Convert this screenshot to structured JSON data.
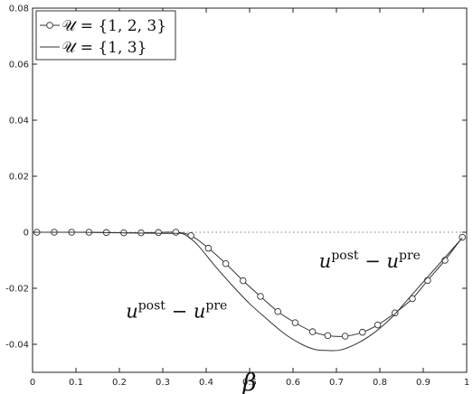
{
  "chart_data": {
    "type": "line",
    "xlabel": "β",
    "ylabel": "",
    "xlim": [
      0,
      1
    ],
    "ylim": [
      -0.05,
      0.08
    ],
    "xticks": [
      0,
      0.1,
      0.2,
      0.3,
      0.4,
      0.5,
      0.6,
      0.7,
      0.8,
      0.9,
      1
    ],
    "xtick_labels": [
      "0",
      "0.1",
      "0.2",
      "0.3",
      "0.4",
      "0.5",
      "0.6",
      "0.7",
      "0.8",
      "0.9",
      "1"
    ],
    "yticks": [
      -0.04,
      -0.02,
      0,
      0.02,
      0.04,
      0.06,
      0.08
    ],
    "ytick_labels": [
      "-0.04",
      "-0.02",
      "0",
      "0.02",
      "0.04",
      "0.06",
      "0.08"
    ],
    "grid": false,
    "legend_position": "top-left",
    "reference_line": {
      "y": 0,
      "style": "dotted"
    },
    "series": [
      {
        "name": "𝒰 = {1, 2, 3}",
        "marker": "circle",
        "color": "#333333",
        "x": [
          0.01,
          0.05,
          0.09,
          0.13,
          0.17,
          0.21,
          0.25,
          0.29,
          0.33,
          0.365,
          0.405,
          0.445,
          0.485,
          0.525,
          0.565,
          0.605,
          0.645,
          0.68,
          0.72,
          0.76,
          0.795,
          0.835,
          0.875,
          0.91,
          0.95,
          0.99
        ],
        "y": [
          0,
          0,
          0,
          0,
          -0.0001,
          -0.0002,
          -0.0002,
          -0.0001,
          0,
          -0.0012,
          -0.0057,
          -0.0112,
          -0.0173,
          -0.0229,
          -0.0283,
          -0.0323,
          -0.0355,
          -0.0369,
          -0.0371,
          -0.0357,
          -0.0331,
          -0.0288,
          -0.0237,
          -0.0172,
          -0.01,
          -0.0018
        ]
      },
      {
        "name": "𝒰 = {1, 3}",
        "marker": "none",
        "color": "#333333",
        "x": [
          0.01,
          0.1,
          0.2,
          0.3,
          0.33,
          0.35,
          0.38,
          0.42,
          0.46,
          0.5,
          0.54,
          0.58,
          0.62,
          0.65,
          0.68,
          0.71,
          0.75,
          0.79,
          0.83,
          0.87,
          0.91,
          0.95,
          0.99
        ],
        "y": [
          0,
          0,
          -0.0002,
          -0.0004,
          -0.0004,
          -0.0008,
          -0.0045,
          -0.012,
          -0.019,
          -0.0255,
          -0.031,
          -0.0362,
          -0.04,
          -0.0418,
          -0.0422,
          -0.042,
          -0.0395,
          -0.0355,
          -0.03,
          -0.023,
          -0.016,
          -0.009,
          -0.002
        ]
      }
    ],
    "annotations": [
      {
        "base": "u",
        "sup1": "post",
        "op": "−",
        "base2": "u",
        "sup2": "pre",
        "x": 0.215,
        "y": -0.0305
      },
      {
        "base": "u",
        "sup1": "post",
        "op": "−",
        "base2": "u",
        "sup2": "pre",
        "x": 0.66,
        "y": -0.0125
      }
    ]
  }
}
